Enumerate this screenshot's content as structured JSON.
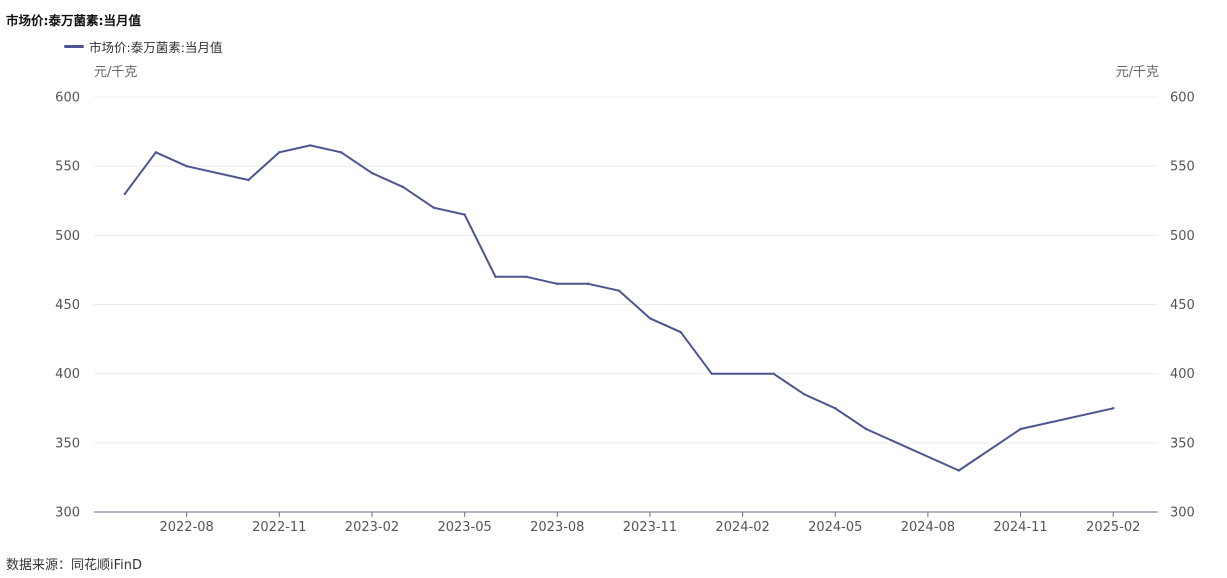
{
  "header": {
    "title": "市场价:泰万菌素:当月值"
  },
  "footer": {
    "source": "数据来源：同花顺iFinD"
  },
  "colors": {
    "series": "#4c5590",
    "grid": "#ececec",
    "axis": "#6b6f8a"
  },
  "chart_data": {
    "type": "line",
    "title": "市场价:泰万菌素:当月值",
    "y_unit_left": "元/千克",
    "y_unit_right": "元/千克",
    "ylim": [
      300,
      600
    ],
    "yticks": [
      300,
      350,
      400,
      450,
      500,
      550,
      600
    ],
    "xlim": [
      "2022-05",
      "2025-03"
    ],
    "xticks": [
      "2022-08",
      "2022-11",
      "2023-02",
      "2023-05",
      "2023-08",
      "2023-11",
      "2024-02",
      "2024-05",
      "2024-08",
      "2024-11",
      "2025-02"
    ],
    "grid": true,
    "legend": "top-left",
    "series": [
      {
        "name": "市场价:泰万菌素:当月值",
        "x": [
          "2022-06",
          "2022-07",
          "2022-08",
          "2022-10",
          "2022-11",
          "2022-12",
          "2023-01",
          "2023-02",
          "2023-03",
          "2023-04",
          "2023-05",
          "2023-06",
          "2023-07",
          "2023-08",
          "2023-09",
          "2023-10",
          "2023-11",
          "2023-12",
          "2024-01",
          "2024-03",
          "2024-04",
          "2024-05",
          "2024-06",
          "2024-09",
          "2024-11",
          "2025-02"
        ],
        "values": [
          530,
          560,
          550,
          540,
          560,
          565,
          560,
          545,
          535,
          520,
          515,
          470,
          470,
          465,
          465,
          460,
          440,
          430,
          400,
          400,
          385,
          375,
          360,
          330,
          360,
          375
        ]
      }
    ]
  }
}
